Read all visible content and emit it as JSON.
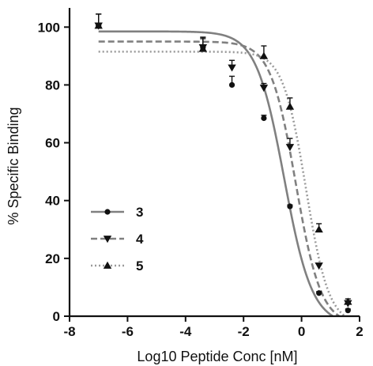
{
  "chart_data": {
    "type": "scatter",
    "xlabel": "Log10 Peptide Conc [nM]",
    "ylabel": "% Specific Binding",
    "xlim": [
      -8,
      2
    ],
    "ylim": [
      0,
      105
    ],
    "x_ticks": [
      "-8",
      "-6",
      "-4",
      "-2",
      "0",
      "2"
    ],
    "y_ticks": [
      "0",
      "20",
      "40",
      "60",
      "80",
      "100"
    ],
    "grid": false,
    "legend_position": "left-middle",
    "series": [
      {
        "name": "3",
        "marker": "circle",
        "line_style": "solid",
        "color": "#808080",
        "points": [
          {
            "x": -7.0,
            "y": 100.5,
            "err": 4.0
          },
          {
            "x": -3.4,
            "y": 93.0,
            "err": 3.5
          },
          {
            "x": -2.4,
            "y": 80.0,
            "err": 3.0
          },
          {
            "x": -1.3,
            "y": 68.5,
            "err": 1.0
          },
          {
            "x": -0.4,
            "y": 38.0,
            "err": 0.5
          },
          {
            "x": 0.6,
            "y": 8.0,
            "err": 0.5
          },
          {
            "x": 1.6,
            "y": 2.0,
            "err": 0.5
          }
        ],
        "fit": {
          "top": 98.5,
          "bottom": -3.0,
          "logEC50": -0.6,
          "hill": -0.9
        }
      },
      {
        "name": "4",
        "marker": "triangle-down",
        "line_style": "dashed",
        "color": "#808080",
        "points": [
          {
            "x": -7.0,
            "y": 100.5,
            "err": 4.0
          },
          {
            "x": -3.4,
            "y": 93.0,
            "err": 3.5
          },
          {
            "x": -2.4,
            "y": 86.0,
            "err": 2.5
          },
          {
            "x": -1.3,
            "y": 79.0,
            "err": 1.5
          },
          {
            "x": -0.4,
            "y": 58.5,
            "err": 3.0
          },
          {
            "x": 0.6,
            "y": 17.5,
            "err": 0.5
          },
          {
            "x": 1.6,
            "y": 4.5,
            "err": 0.5
          }
        ],
        "fit": {
          "top": 95.0,
          "bottom": -3.0,
          "logEC50": -0.2,
          "hill": -1.0
        }
      },
      {
        "name": "5",
        "marker": "triangle-up",
        "line_style": "dotted",
        "color": "#9a9a9a",
        "points": [
          {
            "x": -7.0,
            "y": 100.5,
            "err": 4.0
          },
          {
            "x": -3.4,
            "y": 92.5,
            "err": 3.5
          },
          {
            "x": -1.3,
            "y": 90.0,
            "err": 3.5
          },
          {
            "x": -0.4,
            "y": 72.5,
            "err": 3.0
          },
          {
            "x": 0.6,
            "y": 30.0,
            "err": 2.0
          },
          {
            "x": 1.6,
            "y": 5.0,
            "err": 1.0
          }
        ],
        "fit": {
          "top": 91.5,
          "bottom": -3.0,
          "logEC50": 0.15,
          "hill": -1.1
        }
      }
    ]
  }
}
